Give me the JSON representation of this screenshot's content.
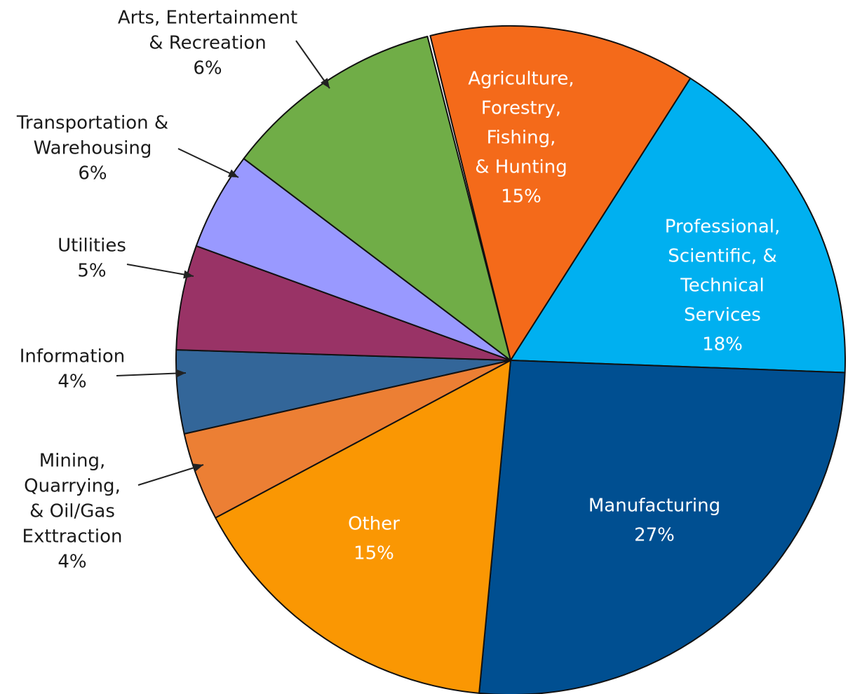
{
  "chart_data": {
    "type": "pie",
    "slices": [
      {
        "label": [
          "Agriculture,",
          "Forestry,",
          "Fishing,",
          "& Hunting"
        ],
        "pct_text": "15%",
        "value": 15,
        "color": "#F46A1A",
        "text_color": "#ffffff",
        "placement": "inside"
      },
      {
        "label": [
          "Professional,",
          "Scientific, &",
          "Technical",
          "Services"
        ],
        "pct_text": "18%",
        "value": 18,
        "color": "#00B0F0",
        "text_color": "#ffffff",
        "placement": "inside"
      },
      {
        "label": [
          "Manufacturing"
        ],
        "pct_text": "27%",
        "value": 27,
        "color": "#004F91",
        "text_color": "#ffffff",
        "placement": "inside"
      },
      {
        "label": [
          "Other"
        ],
        "pct_text": "15%",
        "value": 15,
        "color": "#FA9703",
        "text_color": "#ffffff",
        "placement": "inside"
      },
      {
        "label": [
          "Mining,",
          "Quarrying,",
          "& Oil/Gas",
          "Exttraction"
        ],
        "pct_text": "4%",
        "value": 4,
        "color": "#EC7F34",
        "text_color": "#1a1a1a",
        "placement": "callout"
      },
      {
        "label": [
          "Information"
        ],
        "pct_text": "4%",
        "value": 4,
        "color": "#336699",
        "text_color": "#1a1a1a",
        "placement": "callout"
      },
      {
        "label": [
          "Utilities"
        ],
        "pct_text": "5%",
        "value": 5,
        "color": "#993366",
        "text_color": "#1a1a1a",
        "placement": "callout"
      },
      {
        "label": [
          "Transportation &",
          "Warehousing"
        ],
        "pct_text": "6%",
        "value": 6,
        "color": "#9999FF",
        "text_color": "#1a1a1a",
        "placement": "callout"
      },
      {
        "label": [
          "Arts, Entertainment",
          "& Recreation"
        ],
        "pct_text": "6%",
        "value": 6,
        "color": "#70AD47",
        "text_color": "#1a1a1a",
        "placement": "callout"
      }
    ],
    "legend": "none"
  }
}
